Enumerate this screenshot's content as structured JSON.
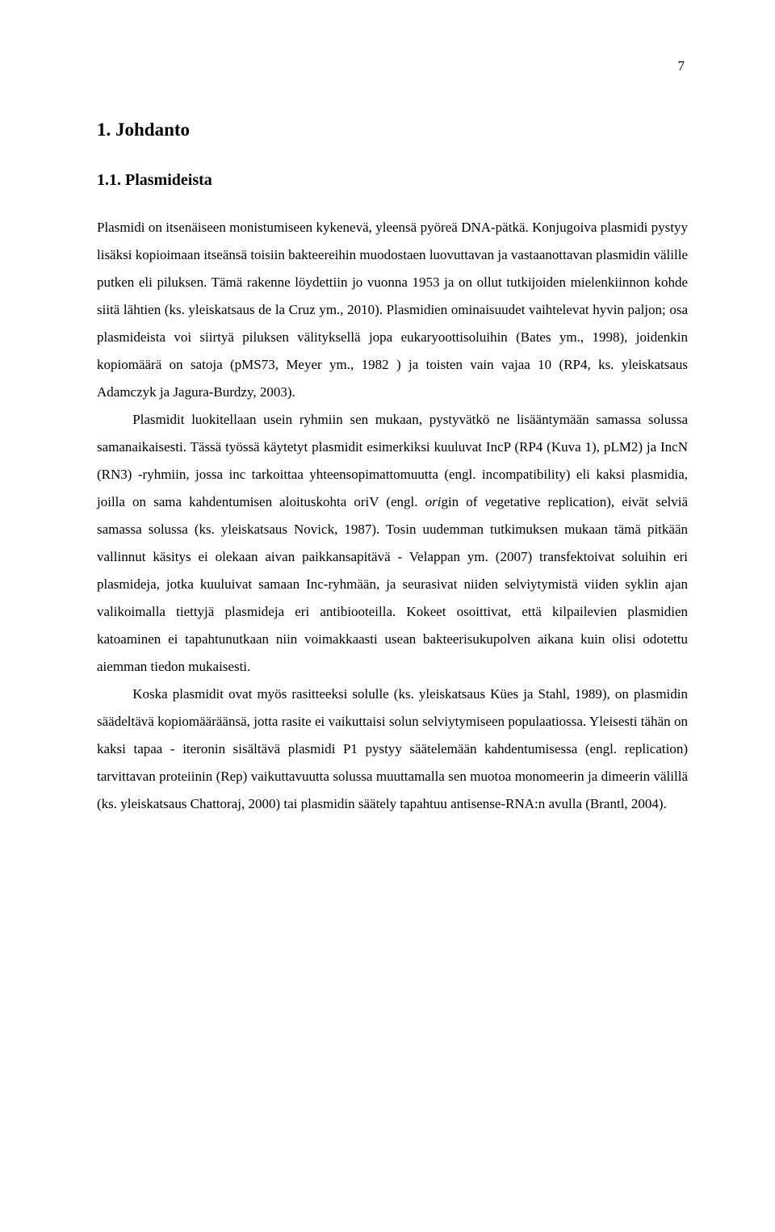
{
  "page": {
    "number": "7",
    "background_color": "#ffffff",
    "text_color": "#000000",
    "font_family": "Times New Roman",
    "body_fontsize_pt": 13,
    "heading1_fontsize_pt": 17,
    "heading2_fontsize_pt": 15,
    "line_height": 2.0
  },
  "heading1": "1. Johdanto",
  "heading2": "1.1. Plasmideista",
  "paragraphs": [
    {
      "runs": [
        {
          "t": "Plasmidi on itsenäiseen monistumiseen kykenevä, yleensä pyöreä DNA-pätkä. Konjugoiva plasmidi pystyy lisäksi kopioimaan itseänsä toisiin bakteereihin muodostaen luovuttavan ja vastaanottavan plasmidin välille putken eli piluksen. Tämä rakenne löydettiin jo vuonna 1953 ja on ollut tutkijoiden mielenkiinnon kohde siitä lähtien (ks. yleiskatsaus de la Cruz ym., 2010). Plasmidien ominaisuudet vaihtelevat hyvin paljon; osa plasmideista voi siirtyä piluksen välityksellä jopa eukaryoottisoluihin (Bates ym., 1998), joidenkin kopiomäärä on satoja (pMS73, Meyer ym., 1982 ) ja toisten vain vajaa 10 (RP4, ks. yleiskatsaus Adamczyk ja Jagura-Burdzy, 2003)."
        }
      ]
    },
    {
      "runs": [
        {
          "t": "Plasmidit luokitellaan usein ryhmiin sen mukaan, pystyvätkö ne lisääntymään samassa solussa samanaikaisesti. Tässä työssä käytetyt plasmidit esimerkiksi kuuluvat IncP (RP4 (Kuva 1), pLM2) ja IncN (RN3) -ryhmiin, jossa inc tarkoittaa yhteensopimattomuutta (engl. incompatibility) eli kaksi plasmidia, joilla on sama kahdentumisen aloituskohta oriV (engl. "
        },
        {
          "t": "ori",
          "i": true
        },
        {
          "t": "gin of "
        },
        {
          "t": "v",
          "i": true
        },
        {
          "t": "egetative replication), eivät selviä samassa solussa (ks. yleiskatsaus Novick, 1987). Tosin uudemman tutkimuksen mukaan tämä pitkään vallinnut käsitys ei olekaan aivan paikkansapitävä - Velappan ym. (2007) transfektoivat soluihin eri plasmideja, jotka kuuluivat samaan Inc-ryhmään, ja seurasivat niiden selviytymistä viiden syklin ajan valikoimalla tiettyjä plasmideja eri antibiooteilla. Kokeet osoittivat, että kilpailevien plasmidien katoaminen ei tapahtunutkaan niin voimakkaasti usean bakteerisukupolven aikana kuin olisi odotettu aiemman tiedon mukaisesti."
        }
      ]
    },
    {
      "runs": [
        {
          "t": "Koska plasmidit ovat myös rasitteeksi solulle (ks. yleiskatsaus Kües ja Stahl, 1989), on plasmidin säädeltävä kopiomääräänsä, jotta rasite ei vaikuttaisi solun selviytymiseen populaatiossa. Yleisesti tähän on kaksi tapaa - iteronin sisältävä plasmidi P1 pystyy säätelemään kahdentumisessa (engl. replication) tarvittavan proteiinin (Rep) vaikuttavuutta solussa muuttamalla sen muotoa monomeerin ja dimeerin välillä (ks. yleiskatsaus Chattoraj, 2000) tai plasmidin säätely tapahtuu antisense-RNA:n avulla (Brantl, 2004)."
        }
      ]
    }
  ]
}
